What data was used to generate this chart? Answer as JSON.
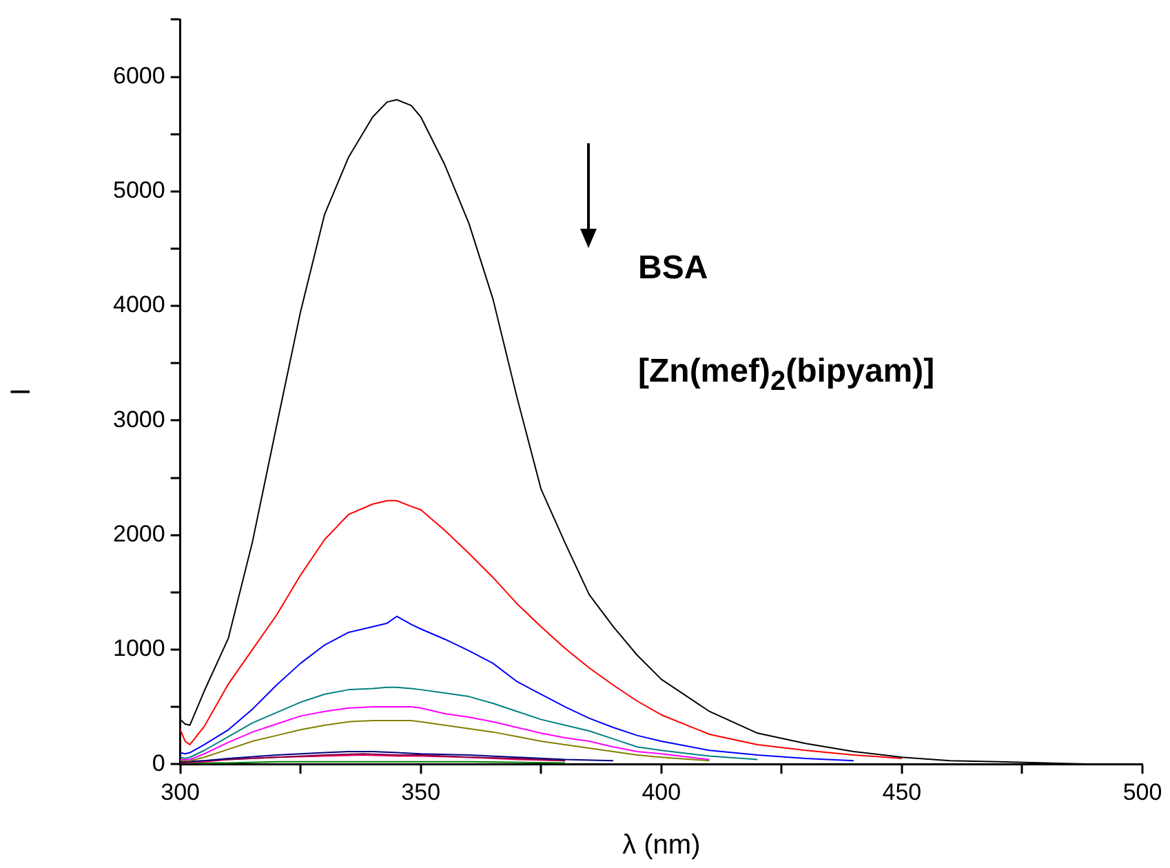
{
  "chart_data": {
    "type": "line",
    "xlabel": "λ (nm)",
    "ylabel": "I",
    "annotations": [
      "BSA",
      "[Zn(mef)$_{2}$(bipyam)]"
    ],
    "xlim": [
      300,
      500
    ],
    "xticks": [
      300,
      {
        "value": 325,
        "label": null
      },
      350,
      {
        "value": 375,
        "label": null
      },
      400,
      {
        "value": 425,
        "label": null
      },
      450,
      {
        "value": 475,
        "label": null
      },
      500
    ],
    "ylim": [
      0,
      6500
    ],
    "yticks": [
      0,
      {
        "value": 500,
        "label": null
      },
      1000,
      {
        "value": 1500,
        "label": null
      },
      2000,
      {
        "value": 2500,
        "label": null
      },
      3000,
      {
        "value": 3500,
        "label": null
      },
      4000,
      {
        "value": 4500,
        "label": null
      },
      5000,
      {
        "value": 5500,
        "label": null
      },
      6000,
      {
        "value": 6500,
        "label": null
      }
    ],
    "grid": false,
    "legend": false,
    "marker": "none",
    "line_style": "solid",
    "x": [
      300,
      301,
      302,
      305,
      310,
      315,
      320,
      325,
      330,
      335,
      340,
      343,
      345,
      348,
      350,
      355,
      360,
      365,
      370,
      375,
      380,
      385,
      390,
      395,
      400,
      410,
      420,
      430,
      440,
      450,
      460,
      470,
      480,
      490,
      500
    ],
    "series": [
      {
        "color": "#000000",
        "values": [
          390,
          350,
          340,
          640,
          1100,
          1940,
          2950,
          3950,
          4800,
          5300,
          5650,
          5780,
          5800,
          5750,
          5650,
          5230,
          4720,
          4060,
          3200,
          2400,
          1930,
          1480,
          1200,
          950,
          740,
          460,
          270,
          180,
          110,
          60,
          30,
          20,
          10,
          0,
          0
        ]
      },
      {
        "color": "#ff0000",
        "values": [
          300,
          200,
          170,
          330,
          700,
          1000,
          1300,
          1650,
          1960,
          2180,
          2270,
          2300,
          2300,
          2250,
          2220,
          2040,
          1840,
          1630,
          1400,
          1200,
          1010,
          840,
          690,
          550,
          430,
          260,
          170,
          120,
          80,
          50,
          null,
          null,
          null,
          null,
          null
        ]
      },
      {
        "color": "#0000ff",
        "values": [
          100,
          90,
          100,
          170,
          300,
          480,
          690,
          880,
          1040,
          1150,
          1200,
          1230,
          1290,
          1220,
          1180,
          1090,
          990,
          880,
          720,
          610,
          500,
          400,
          320,
          250,
          200,
          120,
          80,
          50,
          30,
          null,
          null,
          null,
          null,
          null,
          null
        ]
      },
      {
        "color": "#008080",
        "values": [
          60,
          50,
          60,
          120,
          240,
          360,
          450,
          540,
          610,
          650,
          660,
          670,
          670,
          660,
          650,
          620,
          590,
          530,
          460,
          390,
          340,
          290,
          220,
          150,
          120,
          70,
          40,
          null,
          null,
          null,
          null,
          null,
          null,
          null,
          null
        ]
      },
      {
        "color": "#ff00ff",
        "values": [
          40,
          40,
          40,
          90,
          190,
          280,
          350,
          420,
          460,
          490,
          500,
          500,
          500,
          500,
          490,
          440,
          410,
          370,
          320,
          270,
          230,
          200,
          150,
          110,
          90,
          40,
          null,
          null,
          null,
          null,
          null,
          null,
          null,
          null,
          null
        ]
      },
      {
        "color": "#808000",
        "values": [
          30,
          30,
          30,
          60,
          130,
          200,
          250,
          300,
          340,
          370,
          380,
          380,
          380,
          380,
          370,
          340,
          310,
          280,
          240,
          200,
          170,
          140,
          110,
          80,
          60,
          30,
          null,
          null,
          null,
          null,
          null,
          null,
          null,
          null,
          null
        ]
      },
      {
        "color": "#000080",
        "x": [
          300,
          305,
          310,
          320,
          330,
          335,
          340,
          345,
          350,
          360,
          370,
          380,
          390
        ],
        "values": [
          20,
          30,
          50,
          80,
          100,
          110,
          110,
          100,
          90,
          80,
          60,
          40,
          30
        ]
      },
      {
        "color": "#800040",
        "x": [
          300,
          305,
          310,
          320,
          330,
          338,
          345,
          350,
          360,
          370,
          380
        ],
        "values": [
          10,
          30,
          40,
          60,
          80,
          90,
          80,
          80,
          60,
          50,
          30
        ]
      },
      {
        "color": "#ff0066",
        "x": [
          300,
          305,
          310,
          320,
          330,
          338,
          345,
          350,
          360,
          370,
          380
        ],
        "values": [
          10,
          20,
          40,
          60,
          70,
          80,
          70,
          70,
          60,
          40,
          30
        ]
      },
      {
        "color": "#008000",
        "x": [
          300,
          310,
          320,
          330,
          340,
          350,
          360,
          380
        ],
        "values": [
          10,
          10,
          20,
          20,
          20,
          20,
          20,
          10
        ]
      }
    ]
  }
}
